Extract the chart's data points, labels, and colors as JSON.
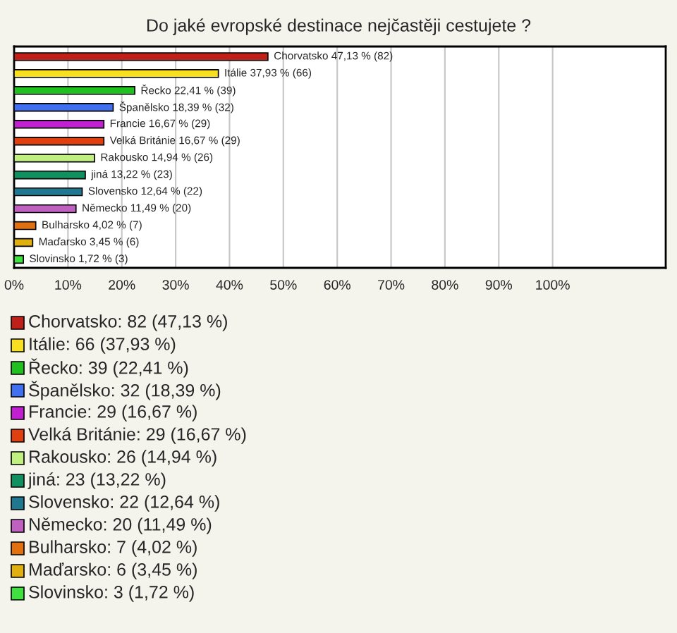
{
  "chart_data": {
    "type": "bar",
    "orientation": "horizontal",
    "title": "Do jaké evropské destinace nejčastěji cestujete ?",
    "categories": [
      null,
      null,
      null,
      null,
      null,
      null,
      null,
      null,
      null,
      null,
      null,
      null,
      null
    ],
    "values": [
      47.13,
      37.93,
      22.41,
      18.39,
      16.67,
      16.67,
      14.94,
      13.22,
      12.64,
      11.49,
      4.02,
      3.45,
      1.72
    ],
    "colors": [
      "#c0201a",
      "#f8e020",
      "#20c020",
      "#4070f0",
      "#c020d0",
      "#e04010",
      "#c0f080",
      "#109060",
      "#207890",
      "#c060c0",
      "#e07010",
      "#e0b010",
      "#40e040"
    ],
    "value_labels": [
      "Chorvatsko 47,13 % (82)",
      "Itálie 37,93 % (66)",
      "Řecko 22,41 % (39)",
      "Španělsko 18,39 % (32)",
      "Francie 16,67 % (29)",
      "Velká Británie 16,67 % (29)",
      "Rakousko 14,94 % (26)",
      "jiná 13,22 % (23)",
      "Slovensko 12,64 % (22)",
      "Německo 11,49 % (20)",
      "Bulharsko 4,02 % (7)",
      "Maďarsko 3,45 % (6)",
      "Slovinsko 1,72 % (3)"
    ],
    "annotations": [
      "Chorvatsko: 82 (47,13 %)",
      "Itálie: 66 (37,93 %)",
      "Řecko: 39 (22,41 %)",
      "Španělsko: 32 (18,39 %)",
      "Francie: 29 (16,67 %)",
      "Velká Británie: 29 (16,67 %)",
      "Rakousko: 26 (14,94 %)",
      "jiná: 23 (13,22 %)",
      "Slovensko: 22 (12,64 %)",
      "Německo: 20 (11,49 %)",
      "Bulharsko: 7 (4,02 %)",
      "Maďarsko: 6 (3,45 %)",
      "Slovinsko: 3 (1,72 %)"
    ],
    "xlim": [
      0,
      121
    ],
    "xticks": [
      {
        "value": 0,
        "label": "0%"
      },
      {
        "value": 10,
        "label": "10%"
      },
      {
        "value": 20,
        "label": "20%"
      },
      {
        "value": 30,
        "label": "30%"
      },
      {
        "value": 40,
        "label": "40%"
      },
      {
        "value": 50,
        "label": "50%"
      },
      {
        "value": 60,
        "label": "60%"
      },
      {
        "value": 70,
        "label": "70%"
      },
      {
        "value": 80,
        "label": "80%"
      },
      {
        "value": 90,
        "label": "90%"
      },
      {
        "value": 100,
        "label": "100%"
      }
    ],
    "grid": "x",
    "tick_labels": "x"
  }
}
